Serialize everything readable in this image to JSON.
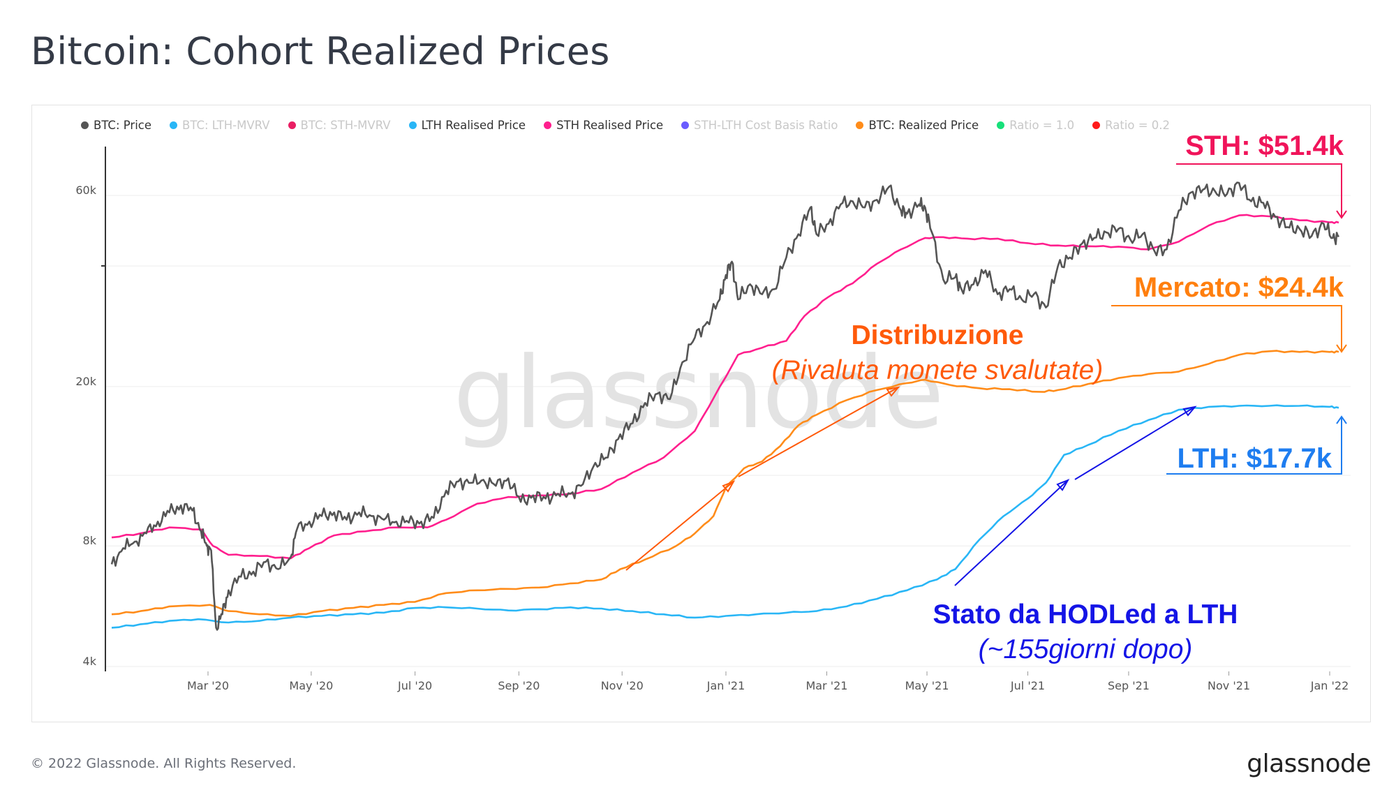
{
  "header": {
    "title": "Bitcoin: Cohort Realized Prices"
  },
  "footer": {
    "copyright": "© 2022 Glassnode. All Rights Reserved.",
    "logo": "glassnode"
  },
  "watermark": "glassnode",
  "legend": [
    {
      "label": "BTC: Price",
      "color": "#555555",
      "active": true
    },
    {
      "label": "BTC: LTH-MVRV",
      "color": "#29b6f6",
      "active": false
    },
    {
      "label": "BTC: STH-MVRV",
      "color": "#e91e63",
      "active": false
    },
    {
      "label": "LTH Realised Price",
      "color": "#29b6f6",
      "active": true
    },
    {
      "label": "STH Realised Price",
      "color": "#ff1f8e",
      "active": true
    },
    {
      "label": "STH-LTH Cost Basis Ratio",
      "color": "#6a5cff",
      "active": false
    },
    {
      "label": "BTC: Realized Price",
      "color": "#ff8c1a",
      "active": true
    },
    {
      "label": "Ratio = 1.0",
      "color": "#17e07a",
      "active": false
    },
    {
      "label": "Ratio = 0.2",
      "color": "#ff1a1a",
      "active": false
    }
  ],
  "annotations": {
    "sth": "STH: $51.4k",
    "market": "Mercato: $24.4k",
    "lth": "LTH: $17.7k",
    "distribution_title": "Distribuzione",
    "distribution_sub": "(Rivaluta monete svalutate)",
    "hodl_title": "Stato da HODLed a LTH",
    "hodl_sub": "(~155giorni dopo)"
  },
  "colors": {
    "price": "#555555",
    "lth": "#29b6f6",
    "sth": "#ff1f8e",
    "realized": "#ff8c1a",
    "sth_annot": "#f0145a",
    "market_annot": "#ff7f0e",
    "lth_annot": "#1e7df0",
    "distribution_annot": "#ff5a0a",
    "hodl_annot": "#1414e6"
  },
  "chart_data": {
    "type": "line",
    "title": "Bitcoin: Cohort Realized Prices",
    "y_scale": "log",
    "ylim": [
      4000,
      80000
    ],
    "y_ticks": [
      {
        "label": "4k",
        "value": 4000
      },
      {
        "label": "8k",
        "value": 8000
      },
      {
        "label": "20k",
        "value": 20000
      },
      {
        "label": "60k",
        "value": 60000
      }
    ],
    "x_range": [
      2020.0,
      2022.02
    ],
    "x_ticks": [
      {
        "label": "Mar '20",
        "value": 2020.167
      },
      {
        "label": "May '20",
        "value": 2020.333
      },
      {
        "label": "Jul '20",
        "value": 2020.5
      },
      {
        "label": "Sep '20",
        "value": 2020.667
      },
      {
        "label": "Nov '20",
        "value": 2020.833
      },
      {
        "label": "Jan '21",
        "value": 2021.0
      },
      {
        "label": "Mar '21",
        "value": 2021.167
      },
      {
        "label": "May '21",
        "value": 2021.333
      },
      {
        "label": "Jul '21",
        "value": 2021.5
      },
      {
        "label": "Sep '21",
        "value": 2021.667
      },
      {
        "label": "Nov '21",
        "value": 2021.833
      },
      {
        "label": "Jan '22",
        "value": 2022.0
      }
    ],
    "series": [
      {
        "name": "BTC: Price",
        "key": "price",
        "points": [
          [
            2020.0,
            7200
          ],
          [
            2020.02,
            7900
          ],
          [
            2020.04,
            8200
          ],
          [
            2020.06,
            8600
          ],
          [
            2020.08,
            9200
          ],
          [
            2020.1,
            9700
          ],
          [
            2020.12,
            10100
          ],
          [
            2020.14,
            9800
          ],
          [
            2020.155,
            8700
          ],
          [
            2020.165,
            8000
          ],
          [
            2020.172,
            7800
          ],
          [
            2020.18,
            5000
          ],
          [
            2020.19,
            5400
          ],
          [
            2020.2,
            6200
          ],
          [
            2020.22,
            6700
          ],
          [
            2020.24,
            6900
          ],
          [
            2020.26,
            7300
          ],
          [
            2020.28,
            7000
          ],
          [
            2020.3,
            7500
          ],
          [
            2020.31,
            8800
          ],
          [
            2020.33,
            9200
          ],
          [
            2020.35,
            9500
          ],
          [
            2020.37,
            9700
          ],
          [
            2020.39,
            9300
          ],
          [
            2020.41,
            9700
          ],
          [
            2020.43,
            9500
          ],
          [
            2020.45,
            9300
          ],
          [
            2020.47,
            9200
          ],
          [
            2020.49,
            9150
          ],
          [
            2020.51,
            9200
          ],
          [
            2020.53,
            9400
          ],
          [
            2020.55,
            11000
          ],
          [
            2020.57,
            11600
          ],
          [
            2020.59,
            11500
          ],
          [
            2020.61,
            11700
          ],
          [
            2020.63,
            11300
          ],
          [
            2020.65,
            11800
          ],
          [
            2020.67,
            10300
          ],
          [
            2020.69,
            10700
          ],
          [
            2020.71,
            10500
          ],
          [
            2020.73,
            10800
          ],
          [
            2020.75,
            10800
          ],
          [
            2020.77,
            11400
          ],
          [
            2020.79,
            12900
          ],
          [
            2020.81,
            13300
          ],
          [
            2020.83,
            15200
          ],
          [
            2020.85,
            16200
          ],
          [
            2020.87,
            18200
          ],
          [
            2020.89,
            19200
          ],
          [
            2020.91,
            18600
          ],
          [
            2020.93,
            23000
          ],
          [
            2020.95,
            26500
          ],
          [
            2020.97,
            29000
          ],
          [
            2020.99,
            33000
          ],
          [
            2021.0,
            38000
          ],
          [
            2021.01,
            41000
          ],
          [
            2021.02,
            33000
          ],
          [
            2021.04,
            36000
          ],
          [
            2021.06,
            34000
          ],
          [
            2021.08,
            35000
          ],
          [
            2021.1,
            42000
          ],
          [
            2021.12,
            48000
          ],
          [
            2021.14,
            56000
          ],
          [
            2021.15,
            48000
          ],
          [
            2021.17,
            51000
          ],
          [
            2021.19,
            57000
          ],
          [
            2021.21,
            58000
          ],
          [
            2021.23,
            56000
          ],
          [
            2021.25,
            58500
          ],
          [
            2021.27,
            63000
          ],
          [
            2021.29,
            55000
          ],
          [
            2021.3,
            54000
          ],
          [
            2021.32,
            57000
          ],
          [
            2021.33,
            56000
          ],
          [
            2021.34,
            49000
          ],
          [
            2021.36,
            37000
          ],
          [
            2021.38,
            37500
          ],
          [
            2021.39,
            35000
          ],
          [
            2021.41,
            36000
          ],
          [
            2021.43,
            39000
          ],
          [
            2021.45,
            34000
          ],
          [
            2021.47,
            35000
          ],
          [
            2021.49,
            33000
          ],
          [
            2021.51,
            34000
          ],
          [
            2021.53,
            31500
          ],
          [
            2021.55,
            40000
          ],
          [
            2021.57,
            42000
          ],
          [
            2021.59,
            45500
          ],
          [
            2021.61,
            47000
          ],
          [
            2021.63,
            48500
          ],
          [
            2021.65,
            49500
          ],
          [
            2021.67,
            46500
          ],
          [
            2021.69,
            48000
          ],
          [
            2021.71,
            43500
          ],
          [
            2021.73,
            44000
          ],
          [
            2021.75,
            55000
          ],
          [
            2021.77,
            61000
          ],
          [
            2021.79,
            62000
          ],
          [
            2021.81,
            61500
          ],
          [
            2021.83,
            60500
          ],
          [
            2021.85,
            64500
          ],
          [
            2021.87,
            58000
          ],
          [
            2021.89,
            57500
          ],
          [
            2021.91,
            53000
          ],
          [
            2021.93,
            50000
          ],
          [
            2021.95,
            49500
          ],
          [
            2021.97,
            47500
          ],
          [
            2021.99,
            51000
          ],
          [
            2022.005,
            47000
          ],
          [
            2022.015,
            47300
          ]
        ]
      },
      {
        "name": "STH Realised Price",
        "key": "sth",
        "points": [
          [
            2020.0,
            8400
          ],
          [
            2020.05,
            8600
          ],
          [
            2020.1,
            8900
          ],
          [
            2020.155,
            8800
          ],
          [
            2020.175,
            8000
          ],
          [
            2020.2,
            7600
          ],
          [
            2020.25,
            7550
          ],
          [
            2020.3,
            7450
          ],
          [
            2020.33,
            7900
          ],
          [
            2020.37,
            8500
          ],
          [
            2020.42,
            8700
          ],
          [
            2020.47,
            8900
          ],
          [
            2020.52,
            8900
          ],
          [
            2020.55,
            9300
          ],
          [
            2020.6,
            10200
          ],
          [
            2020.65,
            10600
          ],
          [
            2020.7,
            10700
          ],
          [
            2020.75,
            10800
          ],
          [
            2020.8,
            11100
          ],
          [
            2020.85,
            12200
          ],
          [
            2020.9,
            13300
          ],
          [
            2020.95,
            15500
          ],
          [
            2020.98,
            18700
          ],
          [
            2021.02,
            24000
          ],
          [
            2021.06,
            25000
          ],
          [
            2021.1,
            26000
          ],
          [
            2021.13,
            30000
          ],
          [
            2021.17,
            33500
          ],
          [
            2021.21,
            36200
          ],
          [
            2021.25,
            40500
          ],
          [
            2021.29,
            44000
          ],
          [
            2021.33,
            47000
          ],
          [
            2021.36,
            47200
          ],
          [
            2021.4,
            46800
          ],
          [
            2021.45,
            46800
          ],
          [
            2021.5,
            45600
          ],
          [
            2021.55,
            45000
          ],
          [
            2021.6,
            44800
          ],
          [
            2021.65,
            44700
          ],
          [
            2021.7,
            44000
          ],
          [
            2021.75,
            46000
          ],
          [
            2021.8,
            50500
          ],
          [
            2021.85,
            53500
          ],
          [
            2021.9,
            53200
          ],
          [
            2021.95,
            52000
          ],
          [
            2022.0,
            51400
          ],
          [
            2022.015,
            51300
          ]
        ]
      },
      {
        "name": "BTC: Realized Price",
        "key": "realized",
        "points": [
          [
            2020.0,
            5400
          ],
          [
            2020.05,
            5500
          ],
          [
            2020.1,
            5650
          ],
          [
            2020.17,
            5700
          ],
          [
            2020.2,
            5500
          ],
          [
            2020.25,
            5400
          ],
          [
            2020.3,
            5350
          ],
          [
            2020.35,
            5500
          ],
          [
            2020.4,
            5600
          ],
          [
            2020.45,
            5700
          ],
          [
            2020.5,
            5800
          ],
          [
            2020.55,
            6100
          ],
          [
            2020.6,
            6200
          ],
          [
            2020.65,
            6250
          ],
          [
            2020.7,
            6300
          ],
          [
            2020.75,
            6450
          ],
          [
            2020.8,
            6600
          ],
          [
            2020.83,
            7000
          ],
          [
            2020.87,
            7400
          ],
          [
            2020.92,
            8000
          ],
          [
            2020.95,
            8600
          ],
          [
            2020.98,
            9500
          ],
          [
            2021.0,
            11200
          ],
          [
            2021.03,
            12500
          ],
          [
            2021.06,
            13000
          ],
          [
            2021.09,
            14200
          ],
          [
            2021.12,
            16000
          ],
          [
            2021.15,
            17000
          ],
          [
            2021.2,
            18500
          ],
          [
            2021.25,
            19600
          ],
          [
            2021.3,
            20400
          ],
          [
            2021.33,
            20800
          ],
          [
            2021.37,
            20200
          ],
          [
            2021.42,
            19800
          ],
          [
            2021.47,
            19700
          ],
          [
            2021.52,
            19400
          ],
          [
            2021.55,
            19600
          ],
          [
            2021.6,
            20300
          ],
          [
            2021.65,
            21000
          ],
          [
            2021.7,
            21500
          ],
          [
            2021.75,
            21800
          ],
          [
            2021.8,
            22800
          ],
          [
            2021.85,
            24000
          ],
          [
            2021.9,
            24500
          ],
          [
            2021.95,
            24400
          ],
          [
            2022.0,
            24400
          ],
          [
            2022.015,
            24400
          ]
        ]
      },
      {
        "name": "LTH Realised Price",
        "key": "lth",
        "points": [
          [
            2020.0,
            5000
          ],
          [
            2020.05,
            5100
          ],
          [
            2020.1,
            5200
          ],
          [
            2020.15,
            5250
          ],
          [
            2020.2,
            5150
          ],
          [
            2020.25,
            5200
          ],
          [
            2020.3,
            5300
          ],
          [
            2020.35,
            5350
          ],
          [
            2020.4,
            5400
          ],
          [
            2020.45,
            5450
          ],
          [
            2020.5,
            5600
          ],
          [
            2020.55,
            5620
          ],
          [
            2020.6,
            5580
          ],
          [
            2020.65,
            5520
          ],
          [
            2020.7,
            5560
          ],
          [
            2020.75,
            5620
          ],
          [
            2020.8,
            5580
          ],
          [
            2020.85,
            5500
          ],
          [
            2020.9,
            5400
          ],
          [
            2020.95,
            5300
          ],
          [
            2021.0,
            5350
          ],
          [
            2021.05,
            5400
          ],
          [
            2021.1,
            5450
          ],
          [
            2021.15,
            5500
          ],
          [
            2021.2,
            5650
          ],
          [
            2021.25,
            5900
          ],
          [
            2021.3,
            6200
          ],
          [
            2021.35,
            6600
          ],
          [
            2021.38,
            7000
          ],
          [
            2021.42,
            8300
          ],
          [
            2021.46,
            9500
          ],
          [
            2021.5,
            10500
          ],
          [
            2021.53,
            11500
          ],
          [
            2021.56,
            13500
          ],
          [
            2021.6,
            14300
          ],
          [
            2021.65,
            15500
          ],
          [
            2021.7,
            16500
          ],
          [
            2021.75,
            17500
          ],
          [
            2021.8,
            17800
          ],
          [
            2021.85,
            17900
          ],
          [
            2021.9,
            17900
          ],
          [
            2021.95,
            17900
          ],
          [
            2022.0,
            17800
          ],
          [
            2022.015,
            17700
          ]
        ]
      }
    ]
  }
}
